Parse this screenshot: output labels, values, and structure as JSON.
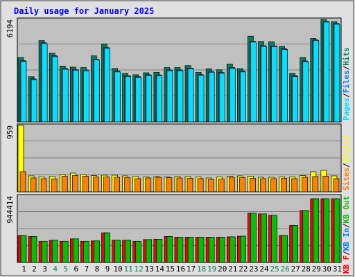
{
  "chart_data": {
    "type": "bar",
    "title": "Daily usage for January 2025",
    "colors": {
      "background": "#e0e0e0",
      "plot": "#c0c0c0",
      "title": "#0000ff",
      "hits": "#00805c",
      "files": "#0080ff",
      "pages": "#00e0ff",
      "visits": "#ffff00",
      "sites": "#ff8000",
      "kbf": "#ff0000",
      "kbin": "#0080ff",
      "kbout": "#00c000",
      "weekend": "#00805c",
      "weekday": "#000000"
    },
    "categories": [
      "1",
      "2",
      "3",
      "4",
      "5",
      "6",
      "7",
      "8",
      "9",
      "10",
      "11",
      "12",
      "13",
      "14",
      "15",
      "16",
      "17",
      "18",
      "19",
      "20",
      "21",
      "22",
      "23",
      "24",
      "25",
      "26",
      "27",
      "28",
      "29",
      "30",
      "31"
    ],
    "weekend_days": [
      4,
      5,
      11,
      12,
      18,
      19,
      25,
      26
    ],
    "panels": [
      {
        "name": "hits-files-pages",
        "ymax": 6194,
        "ymax_label": "6194",
        "legend": [
          {
            "text": "Hits",
            "color_key": "hits"
          },
          {
            "text": "Files",
            "color_key": "files"
          },
          {
            "text": "Pages",
            "color_key": "pages"
          }
        ],
        "series": [
          {
            "name": "Hits",
            "color_key": "hits",
            "values": [
              3890,
              2730,
              4910,
              4150,
              3370,
              3310,
              3280,
              3990,
              4710,
              3230,
              2930,
              2850,
              2970,
              3000,
              3280,
              3280,
              3400,
              3000,
              3210,
              3150,
              3500,
              3220,
              5180,
              4860,
              4840,
              4560,
              2930,
              3890,
              5040,
              6190,
              6060
            ]
          },
          {
            "name": "Files",
            "color_key": "files",
            "values": [
              3700,
              2600,
              4780,
              3990,
              3240,
              3170,
              3130,
              3790,
              4490,
              3070,
              2790,
              2730,
              2850,
              2840,
              3140,
              3140,
              3250,
              2860,
              3050,
              2990,
              3290,
              3070,
              4870,
              4610,
              4590,
              4420,
              2790,
              3680,
              4960,
              6080,
              5950
            ]
          },
          {
            "name": "Pages",
            "color_key": "pages",
            "values": [
              3650,
              2550,
              4730,
              3940,
              3180,
              3120,
              3080,
              3740,
              4440,
              3020,
              2740,
              2680,
              2800,
              2790,
              3090,
              3090,
              3200,
              2810,
              3000,
              2940,
              3240,
              3020,
              4820,
              4560,
              4540,
              4370,
              2740,
              3630,
              4910,
              6030,
              5900
            ]
          }
        ]
      },
      {
        "name": "visits-sites",
        "ymax": 959,
        "ymax_label": "959",
        "legend": [
          {
            "text": "Visits",
            "color_key": "visits"
          },
          {
            "text": "Sites",
            "color_key": "sites"
          }
        ],
        "series": [
          {
            "name": "Visits",
            "color_key": "visits",
            "values": [
              959,
              230,
              215,
              220,
              245,
              270,
              245,
              235,
              240,
              240,
              230,
              220,
              215,
              220,
              215,
              220,
              220,
              215,
              200,
              215,
              225,
              230,
              225,
              210,
              210,
              215,
              215,
              235,
              290,
              310,
              230
            ]
          },
          {
            "name": "Sites",
            "color_key": "sites",
            "values": [
              290,
              200,
              190,
              185,
              225,
              235,
              225,
              215,
              215,
              210,
              205,
              190,
              200,
              210,
              205,
              200,
              195,
              190,
              180,
              185,
              210,
              205,
              195,
              190,
              190,
              195,
              190,
              210,
              220,
              225,
              190
            ]
          }
        ]
      },
      {
        "name": "kb",
        "ymax": 944414,
        "ymax_label": "944414",
        "legend": [
          {
            "text": "Visits",
            "color_key": "visits",
            "hidden": true
          },
          {
            "text": "KB F",
            "color_key": "kbf"
          },
          {
            "text": "KB In",
            "color_key": "kbin"
          },
          {
            "text": "KB Out",
            "color_key": "kbout"
          }
        ],
        "series": [
          {
            "name": "KB F",
            "color_key": "kbf",
            "values": [
              400000,
              385000,
              315000,
              330000,
              315000,
              350000,
              315000,
              320000,
              440000,
              330000,
              330000,
              315000,
              340000,
              345000,
              385000,
              375000,
              375000,
              375000,
              375000,
              375000,
              380000,
              390000,
              730000,
              720000,
              700000,
              400000,
              550000,
              770000,
              944414,
              944414,
              944414
            ]
          },
          {
            "name": "KB Out",
            "color_key": "kbout",
            "values": [
              400000,
              385000,
              315000,
              330000,
              315000,
              350000,
              315000,
              320000,
              440000,
              330000,
              330000,
              315000,
              340000,
              345000,
              385000,
              375000,
              375000,
              375000,
              375000,
              375000,
              380000,
              390000,
              730000,
              720000,
              700000,
              400000,
              550000,
              770000,
              944414,
              944414,
              944414
            ]
          }
        ]
      }
    ],
    "legend_labels": {
      "top": [
        "Pages",
        "Files",
        "Hits"
      ],
      "middle": [
        "Sites",
        "Visits"
      ],
      "bottom": [
        "KB F",
        "KB In",
        "KB Out"
      ]
    }
  }
}
